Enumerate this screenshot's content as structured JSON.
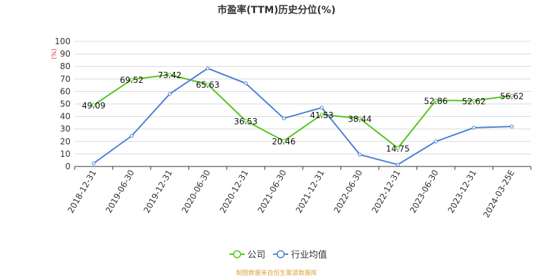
{
  "chart_data": {
    "type": "line",
    "title": "市盈率(TTM)历史分位(%)",
    "ylabel": "(%)",
    "ylim": [
      0,
      100
    ],
    "yticks": [
      0,
      10,
      20,
      30,
      40,
      50,
      60,
      70,
      80,
      90,
      100
    ],
    "categories": [
      "2018-12-31",
      "2019-06-30",
      "2019-12-31",
      "2020-06-30",
      "2020-12-31",
      "2021-06-30",
      "2021-12-31",
      "2022-06-30",
      "2022-12-31",
      "2023-06-30",
      "2023-12-31",
      "2024-03-25E"
    ],
    "grid": true,
    "legend_position": "bottom",
    "series": [
      {
        "name": "公司",
        "color": "#52c41a",
        "values": [
          49.09,
          69.52,
          73.42,
          65.63,
          36.53,
          20.46,
          41.53,
          38.44,
          14.75,
          52.86,
          52.62,
          56.62
        ],
        "labels": [
          "49.09",
          "69.52",
          "73.42",
          "65.63",
          "36.53",
          "20.46",
          "41.53",
          "38.44",
          "14.75",
          "52.86",
          "52.62",
          "56.62"
        ]
      },
      {
        "name": "行业均值",
        "color": "#4a7fd6",
        "values": [
          2.5,
          24.5,
          58,
          78.5,
          66.5,
          38.5,
          47,
          9.5,
          1.5,
          20,
          31,
          32
        ]
      }
    ]
  },
  "source": "制图数据来自恒生聚源数据库"
}
